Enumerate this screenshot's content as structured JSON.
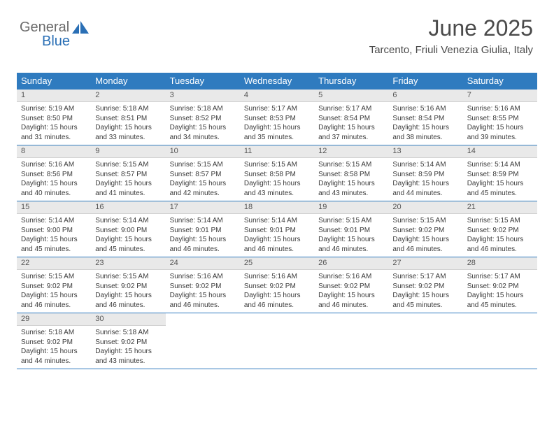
{
  "logo": {
    "text1": "General",
    "text2": "Blue"
  },
  "title": "June 2025",
  "location": "Tarcento, Friuli Venezia Giulia, Italy",
  "colors": {
    "header_bg": "#2f7bbf",
    "header_text": "#ffffff",
    "daynum_bg": "#e9e9e9",
    "daynum_text": "#555555",
    "body_text": "#3a3a3a",
    "divider": "#2f7bbf",
    "logo_gray": "#6b6b6b",
    "logo_blue": "#2a6fb5"
  },
  "weekday_labels": [
    "Sunday",
    "Monday",
    "Tuesday",
    "Wednesday",
    "Thursday",
    "Friday",
    "Saturday"
  ],
  "weeks": [
    [
      {
        "n": "1",
        "sr": "5:19 AM",
        "ss": "8:50 PM",
        "dl": "15 hours and 31 minutes."
      },
      {
        "n": "2",
        "sr": "5:18 AM",
        "ss": "8:51 PM",
        "dl": "15 hours and 33 minutes."
      },
      {
        "n": "3",
        "sr": "5:18 AM",
        "ss": "8:52 PM",
        "dl": "15 hours and 34 minutes."
      },
      {
        "n": "4",
        "sr": "5:17 AM",
        "ss": "8:53 PM",
        "dl": "15 hours and 35 minutes."
      },
      {
        "n": "5",
        "sr": "5:17 AM",
        "ss": "8:54 PM",
        "dl": "15 hours and 37 minutes."
      },
      {
        "n": "6",
        "sr": "5:16 AM",
        "ss": "8:54 PM",
        "dl": "15 hours and 38 minutes."
      },
      {
        "n": "7",
        "sr": "5:16 AM",
        "ss": "8:55 PM",
        "dl": "15 hours and 39 minutes."
      }
    ],
    [
      {
        "n": "8",
        "sr": "5:16 AM",
        "ss": "8:56 PM",
        "dl": "15 hours and 40 minutes."
      },
      {
        "n": "9",
        "sr": "5:15 AM",
        "ss": "8:57 PM",
        "dl": "15 hours and 41 minutes."
      },
      {
        "n": "10",
        "sr": "5:15 AM",
        "ss": "8:57 PM",
        "dl": "15 hours and 42 minutes."
      },
      {
        "n": "11",
        "sr": "5:15 AM",
        "ss": "8:58 PM",
        "dl": "15 hours and 43 minutes."
      },
      {
        "n": "12",
        "sr": "5:15 AM",
        "ss": "8:58 PM",
        "dl": "15 hours and 43 minutes."
      },
      {
        "n": "13",
        "sr": "5:14 AM",
        "ss": "8:59 PM",
        "dl": "15 hours and 44 minutes."
      },
      {
        "n": "14",
        "sr": "5:14 AM",
        "ss": "8:59 PM",
        "dl": "15 hours and 45 minutes."
      }
    ],
    [
      {
        "n": "15",
        "sr": "5:14 AM",
        "ss": "9:00 PM",
        "dl": "15 hours and 45 minutes."
      },
      {
        "n": "16",
        "sr": "5:14 AM",
        "ss": "9:00 PM",
        "dl": "15 hours and 45 minutes."
      },
      {
        "n": "17",
        "sr": "5:14 AM",
        "ss": "9:01 PM",
        "dl": "15 hours and 46 minutes."
      },
      {
        "n": "18",
        "sr": "5:14 AM",
        "ss": "9:01 PM",
        "dl": "15 hours and 46 minutes."
      },
      {
        "n": "19",
        "sr": "5:15 AM",
        "ss": "9:01 PM",
        "dl": "15 hours and 46 minutes."
      },
      {
        "n": "20",
        "sr": "5:15 AM",
        "ss": "9:02 PM",
        "dl": "15 hours and 46 minutes."
      },
      {
        "n": "21",
        "sr": "5:15 AM",
        "ss": "9:02 PM",
        "dl": "15 hours and 46 minutes."
      }
    ],
    [
      {
        "n": "22",
        "sr": "5:15 AM",
        "ss": "9:02 PM",
        "dl": "15 hours and 46 minutes."
      },
      {
        "n": "23",
        "sr": "5:15 AM",
        "ss": "9:02 PM",
        "dl": "15 hours and 46 minutes."
      },
      {
        "n": "24",
        "sr": "5:16 AM",
        "ss": "9:02 PM",
        "dl": "15 hours and 46 minutes."
      },
      {
        "n": "25",
        "sr": "5:16 AM",
        "ss": "9:02 PM",
        "dl": "15 hours and 46 minutes."
      },
      {
        "n": "26",
        "sr": "5:16 AM",
        "ss": "9:02 PM",
        "dl": "15 hours and 46 minutes."
      },
      {
        "n": "27",
        "sr": "5:17 AM",
        "ss": "9:02 PM",
        "dl": "15 hours and 45 minutes."
      },
      {
        "n": "28",
        "sr": "5:17 AM",
        "ss": "9:02 PM",
        "dl": "15 hours and 45 minutes."
      }
    ],
    [
      {
        "n": "29",
        "sr": "5:18 AM",
        "ss": "9:02 PM",
        "dl": "15 hours and 44 minutes."
      },
      {
        "n": "30",
        "sr": "5:18 AM",
        "ss": "9:02 PM",
        "dl": "15 hours and 43 minutes."
      },
      null,
      null,
      null,
      null,
      null
    ]
  ],
  "labels": {
    "sunrise": "Sunrise:",
    "sunset": "Sunset:",
    "daylight": "Daylight:"
  }
}
